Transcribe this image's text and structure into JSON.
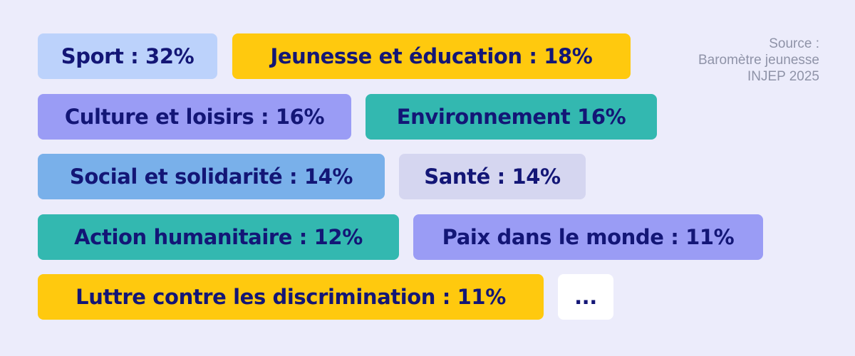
{
  "source": {
    "lines": [
      "Source :",
      "Baromètre jeunesse",
      "INJEP 2025"
    ]
  },
  "tags": [
    {
      "label": "Sport : 32%",
      "color": "#bcd2fb"
    },
    {
      "label": "Jeunesse et éducation : 18%",
      "color": "#ffc90e"
    },
    {
      "label": "Culture et loisirs : 16%",
      "color": "#9a9cf5"
    },
    {
      "label": "Environnement 16%",
      "color": "#33b8b0"
    },
    {
      "label": "Social et solidarité : 14%",
      "color": "#79b0ea"
    },
    {
      "label": "Santé : 14%",
      "color": "#d5d6f0"
    },
    {
      "label": "Action humanitaire : 12%",
      "color": "#33b8b0"
    },
    {
      "label": "Paix dans le monde : 11%",
      "color": "#9a9cf5"
    },
    {
      "label": "Luttre contre les discrimination : 11%",
      "color": "#ffc90e"
    },
    {
      "label": "...",
      "color": "#ffffff"
    }
  ]
}
